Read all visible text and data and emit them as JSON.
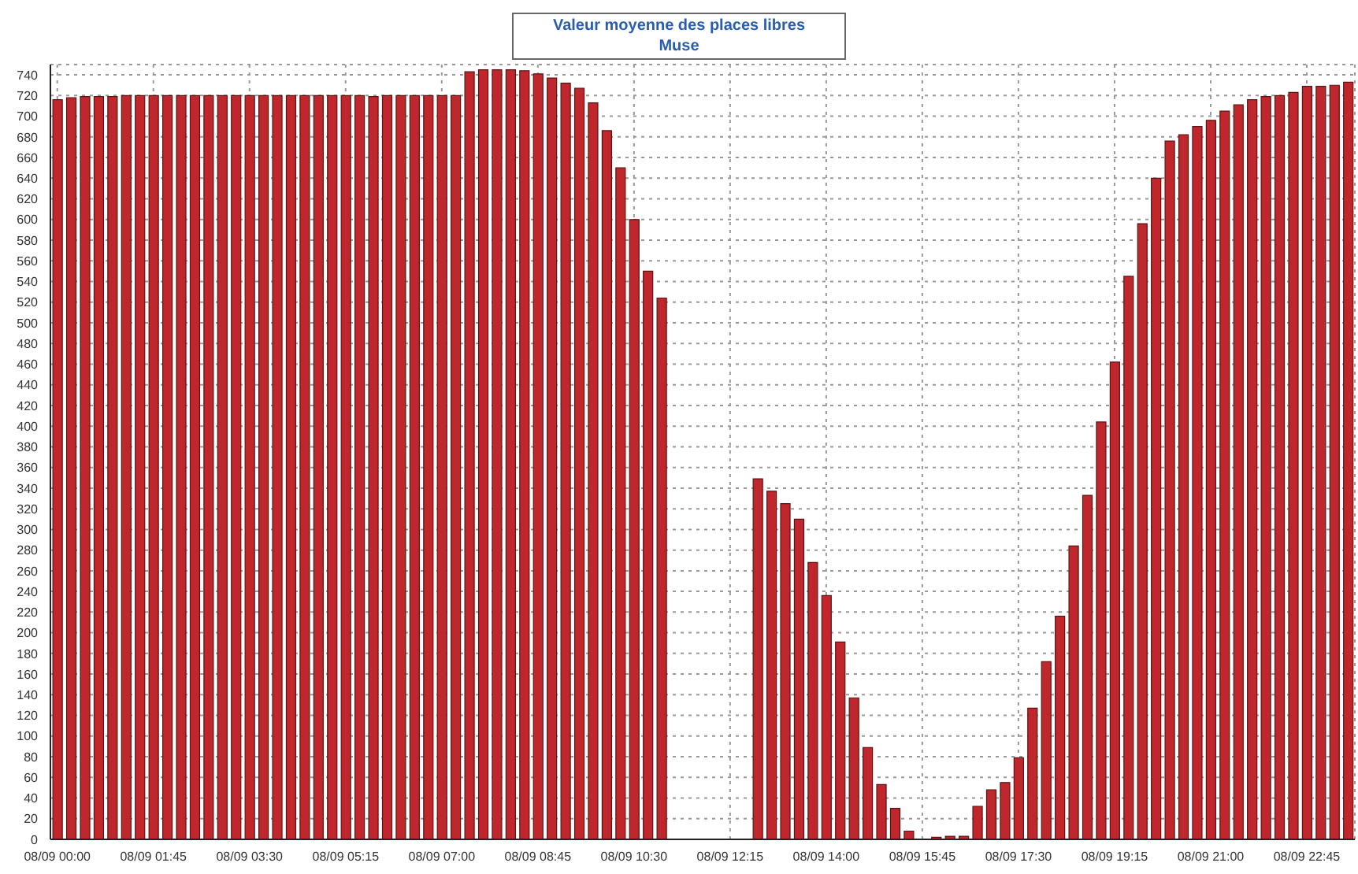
{
  "chart_data": {
    "type": "bar",
    "title": "Valeur moyenne des places libres",
    "subtitle": "Muse",
    "categories": [
      "08/09 00:00",
      null,
      null,
      null,
      null,
      null,
      null,
      "08/09 01:45",
      null,
      null,
      null,
      null,
      null,
      null,
      "08/09 03:30",
      null,
      null,
      null,
      null,
      null,
      null,
      "08/09 05:15",
      null,
      null,
      null,
      null,
      null,
      null,
      "08/09 07:00",
      null,
      null,
      null,
      null,
      null,
      null,
      "08/09 08:45",
      null,
      null,
      null,
      null,
      null,
      null,
      "08/09 10:30",
      null,
      null,
      null,
      null,
      null,
      null,
      "08/09 12:15",
      null,
      null,
      null,
      null,
      null,
      null,
      "08/09 14:00",
      null,
      null,
      null,
      null,
      null,
      null,
      "08/09 15:45",
      null,
      null,
      null,
      null,
      null,
      null,
      "08/09 17:30",
      null,
      null,
      null,
      null,
      null,
      null,
      "08/09 19:15",
      null,
      null,
      null,
      null,
      null,
      null,
      "08/09 21:00",
      null,
      null,
      null,
      null,
      null,
      null,
      "08/09 22:45",
      null,
      null,
      null
    ],
    "values": [
      716,
      718,
      719,
      719,
      719,
      720,
      720,
      720,
      720,
      720,
      720,
      720,
      720,
      720,
      720,
      720,
      720,
      720,
      720,
      720,
      720,
      720,
      720,
      719,
      720,
      720,
      720,
      720,
      720,
      720,
      743,
      745,
      745,
      745,
      744,
      741,
      737,
      732,
      727,
      713,
      686,
      650,
      600,
      550,
      524,
      0,
      0,
      0,
      0,
      0,
      0,
      349,
      337,
      325,
      310,
      268,
      236,
      191,
      137,
      89,
      53,
      30,
      8,
      0,
      2,
      3,
      3,
      32,
      48,
      55,
      79,
      127,
      172,
      216,
      284,
      333,
      404,
      462,
      545,
      596,
      640,
      676,
      682,
      690,
      696,
      705,
      711,
      716,
      719,
      720,
      723,
      729,
      729,
      730,
      733
    ],
    "color": "#c0272d",
    "ylim": [
      0,
      750
    ],
    "yticks": [
      0,
      20,
      40,
      60,
      80,
      100,
      120,
      140,
      160,
      180,
      200,
      220,
      240,
      260,
      280,
      300,
      320,
      340,
      360,
      380,
      400,
      420,
      440,
      460,
      480,
      500,
      520,
      540,
      560,
      580,
      600,
      620,
      640,
      660,
      680,
      700,
      720,
      740
    ],
    "grid": true
  }
}
